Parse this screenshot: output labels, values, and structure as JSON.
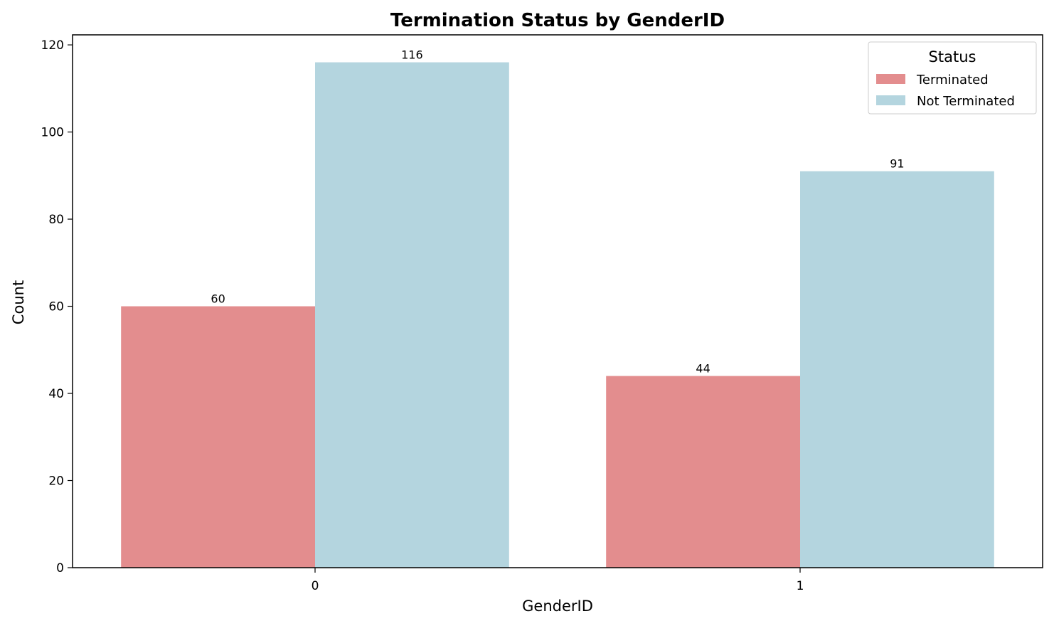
{
  "chart_data": {
    "type": "bar",
    "title": "Termination Status by GenderID",
    "xlabel": "GenderID",
    "ylabel": "Count",
    "categories": [
      "0",
      "1"
    ],
    "series": [
      {
        "name": "Terminated",
        "values": [
          60,
          44
        ],
        "color": "#e38d8e"
      },
      {
        "name": "Not Terminated",
        "values": [
          116,
          91
        ],
        "color": "#b4d5df"
      }
    ],
    "data_labels": [
      [
        "60",
        "44"
      ],
      [
        "116",
        "91"
      ]
    ],
    "yticks": [
      0,
      20,
      40,
      60,
      80,
      100,
      120
    ],
    "ytick_labels": [
      "0",
      "20",
      "40",
      "60",
      "80",
      "100",
      "120"
    ],
    "xtick_labels": [
      "0",
      "1"
    ],
    "ylim": [
      0,
      122.3
    ],
    "grid": false,
    "legend": {
      "title": "Status",
      "placement": "top-right"
    }
  }
}
